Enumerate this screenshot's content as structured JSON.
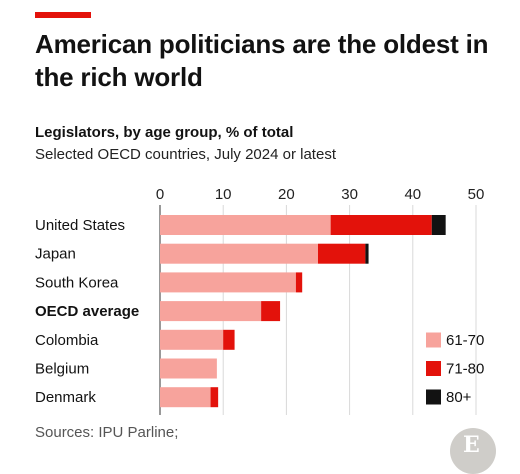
{
  "title": "American politicians are the oldest in the rich world",
  "subtitle": "Legislators, by age group, % of total",
  "subsubtitle": "Selected OECD countries, July 2024 or latest",
  "source": "Sources: IPU Parline;",
  "logo_text": "E",
  "chart_data": {
    "type": "bar",
    "orientation": "horizontal",
    "stacked": true,
    "categories": [
      "United States",
      "Japan",
      "South Korea",
      "OECD average",
      "Colombia",
      "Belgium",
      "Denmark"
    ],
    "bold_categories": [
      "OECD average"
    ],
    "series": [
      {
        "name": "61-70",
        "color": "#f7a39c",
        "values": [
          27,
          25,
          21.5,
          16,
          10,
          9,
          8
        ]
      },
      {
        "name": "71-80",
        "color": "#e3120b",
        "values": [
          16,
          7.5,
          1,
          3,
          1.8,
          0,
          1.2
        ]
      },
      {
        "name": "80+",
        "color": "#121212",
        "values": [
          2.2,
          0.5,
          0,
          0,
          0,
          0,
          0
        ]
      }
    ],
    "xlim": [
      0,
      50
    ],
    "xticks": [
      0,
      10,
      20,
      30,
      40,
      50
    ],
    "xaxis_position": "top",
    "grid": true,
    "legend": "bottom-right"
  }
}
